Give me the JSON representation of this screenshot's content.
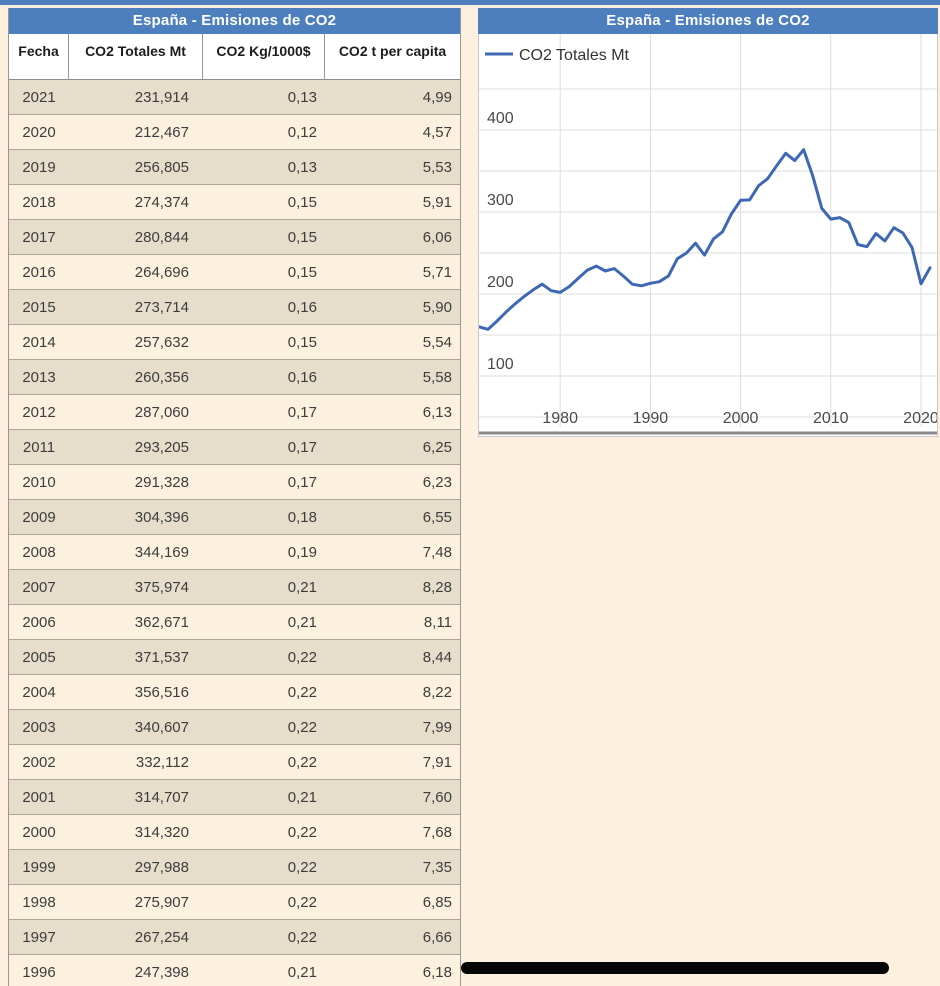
{
  "page": {
    "accent_blue": "#4d7ebd",
    "background": "#fdf0df",
    "line_blue": "#3e68b4"
  },
  "table_panel": {
    "title": "España - Emisiones de CO2",
    "columns": [
      "Fecha",
      "CO2 Totales Mt",
      "CO2 Kg/1000$",
      "CO2 t per capita"
    ],
    "rows": [
      [
        "2021",
        "231,914",
        "0,13",
        "4,99"
      ],
      [
        "2020",
        "212,467",
        "0,12",
        "4,57"
      ],
      [
        "2019",
        "256,805",
        "0,13",
        "5,53"
      ],
      [
        "2018",
        "274,374",
        "0,15",
        "5,91"
      ],
      [
        "2017",
        "280,844",
        "0,15",
        "6,06"
      ],
      [
        "2016",
        "264,696",
        "0,15",
        "5,71"
      ],
      [
        "2015",
        "273,714",
        "0,16",
        "5,90"
      ],
      [
        "2014",
        "257,632",
        "0,15",
        "5,54"
      ],
      [
        "2013",
        "260,356",
        "0,16",
        "5,58"
      ],
      [
        "2012",
        "287,060",
        "0,17",
        "6,13"
      ],
      [
        "2011",
        "293,205",
        "0,17",
        "6,25"
      ],
      [
        "2010",
        "291,328",
        "0,17",
        "6,23"
      ],
      [
        "2009",
        "304,396",
        "0,18",
        "6,55"
      ],
      [
        "2008",
        "344,169",
        "0,19",
        "7,48"
      ],
      [
        "2007",
        "375,974",
        "0,21",
        "8,28"
      ],
      [
        "2006",
        "362,671",
        "0,21",
        "8,11"
      ],
      [
        "2005",
        "371,537",
        "0,22",
        "8,44"
      ],
      [
        "2004",
        "356,516",
        "0,22",
        "8,22"
      ],
      [
        "2003",
        "340,607",
        "0,22",
        "7,99"
      ],
      [
        "2002",
        "332,112",
        "0,22",
        "7,91"
      ],
      [
        "2001",
        "314,707",
        "0,21",
        "7,60"
      ],
      [
        "2000",
        "314,320",
        "0,22",
        "7,68"
      ],
      [
        "1999",
        "297,988",
        "0,22",
        "7,35"
      ],
      [
        "1998",
        "275,907",
        "0,22",
        "6,85"
      ],
      [
        "1997",
        "267,254",
        "0,22",
        "6,66"
      ],
      [
        "1996",
        "247,398",
        "0,21",
        "6,18"
      ]
    ]
  },
  "chart_panel": {
    "title": "España - Emisiones de CO2",
    "legend_label": "CO2 Totales Mt"
  },
  "chart_data": {
    "type": "line",
    "title": "España - Emisiones de CO2",
    "legend": [
      "CO2 Totales Mt"
    ],
    "legend_position": "top-left-inside",
    "grid": true,
    "xlabel": "",
    "ylabel": "",
    "x_ticks": [
      1980,
      1990,
      2000,
      2010,
      2020
    ],
    "y_ticks": [
      100,
      200,
      300,
      400
    ],
    "xlim": [
      1971,
      2022
    ],
    "ylim": [
      25,
      480
    ],
    "line_color": "#3e68b4",
    "years": [
      1971,
      1972,
      1973,
      1974,
      1975,
      1976,
      1977,
      1978,
      1979,
      1980,
      1981,
      1982,
      1983,
      1984,
      1985,
      1986,
      1987,
      1988,
      1989,
      1990,
      1991,
      1992,
      1993,
      1994,
      1995,
      1996,
      1997,
      1998,
      1999,
      2000,
      2001,
      2002,
      2003,
      2004,
      2005,
      2006,
      2007,
      2008,
      2009,
      2010,
      2011,
      2012,
      2013,
      2014,
      2015,
      2016,
      2017,
      2018,
      2019,
      2020,
      2021
    ],
    "values": [
      160,
      157,
      167,
      178,
      188,
      197,
      205,
      212,
      204,
      202,
      209,
      219,
      229,
      234,
      228,
      231,
      222,
      212,
      210,
      213,
      215,
      222,
      243,
      250,
      262,
      247.398,
      267.254,
      275.907,
      297.988,
      314.32,
      314.707,
      332.112,
      340.607,
      356.516,
      371.537,
      362.671,
      375.974,
      344.169,
      304.396,
      291.328,
      293.205,
      287.06,
      260.356,
      257.632,
      273.714,
      264.696,
      280.844,
      274.374,
      256.805,
      212.467,
      231.914
    ]
  }
}
